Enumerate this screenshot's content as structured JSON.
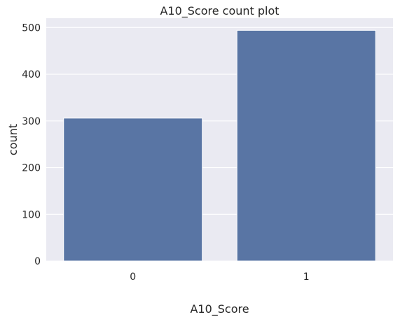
{
  "chart_data": {
    "type": "bar",
    "title": "A10_Score count plot",
    "xlabel": "A10_Score",
    "ylabel": "count",
    "categories": [
      "0",
      "1"
    ],
    "values": [
      306,
      494
    ],
    "ylim": [
      0,
      520
    ],
    "yticks": [
      "0",
      "100",
      "200",
      "300",
      "400",
      "500"
    ],
    "grid": true,
    "colors": {
      "bar": "#5975a4",
      "plot_background": "#eaeaf2",
      "grid": "#ffffff",
      "text": "#262626"
    }
  }
}
